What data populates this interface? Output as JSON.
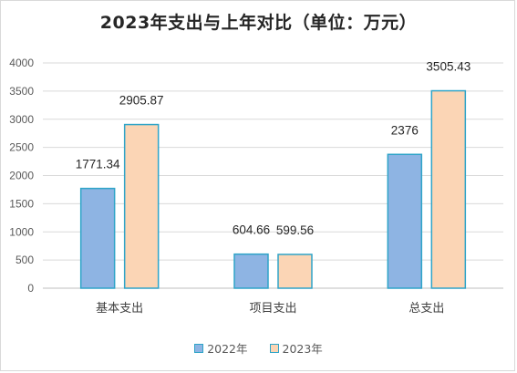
{
  "chart_data": {
    "type": "bar",
    "title": "2023年支出与上年对比（单位：万元）",
    "categories": [
      "基本支出",
      "项目支出",
      "总支出"
    ],
    "series": [
      {
        "name": "2022年",
        "values": [
          1771.34,
          604.66,
          2376
        ],
        "labels": [
          "1771.34",
          "604.66",
          "2376"
        ],
        "color": "#8eb4e3"
      },
      {
        "name": "2023年",
        "values": [
          2905.87,
          599.56,
          3505.43
        ],
        "labels": [
          "2905.87",
          "599.56",
          "3505.43"
        ],
        "color": "#fbd5b5"
      }
    ],
    "bar_border_color": "#2ea4c8",
    "ylim": [
      0,
      4000
    ],
    "yticks": [
      "0",
      "500",
      "1000",
      "1500",
      "2000",
      "2500",
      "3000",
      "3500",
      "4000"
    ],
    "grid": true,
    "legend_position": "bottom",
    "xlabel": "",
    "ylabel": ""
  }
}
